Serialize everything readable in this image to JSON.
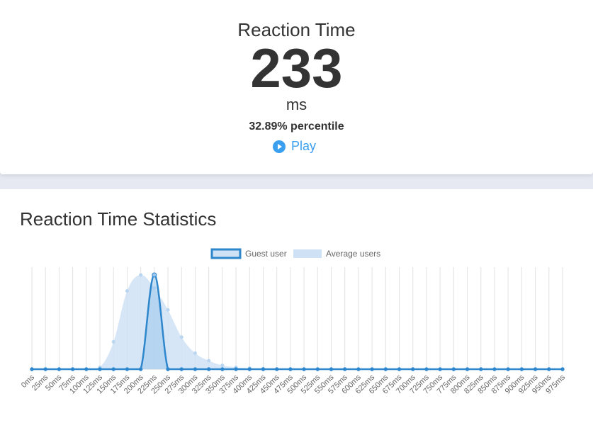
{
  "result": {
    "title": "Reaction Time",
    "value": "233",
    "unit": "ms",
    "percentile": "32.89% percentile",
    "play_label": "Play"
  },
  "stats": {
    "title": "Reaction Time Statistics"
  },
  "colors": {
    "accent": "#3b9ff0",
    "guest_line": "#2e86cc",
    "average_fill": "#cfe2f5"
  },
  "chart_data": {
    "type": "area",
    "categories": [
      "0ms",
      "25ms",
      "50ms",
      "75ms",
      "100ms",
      "125ms",
      "150ms",
      "175ms",
      "200ms",
      "225ms",
      "250ms",
      "275ms",
      "300ms",
      "325ms",
      "350ms",
      "375ms",
      "400ms",
      "425ms",
      "450ms",
      "475ms",
      "500ms",
      "525ms",
      "550ms",
      "575ms",
      "600ms",
      "625ms",
      "650ms",
      "675ms",
      "700ms",
      "725ms",
      "750ms",
      "775ms",
      "800ms",
      "825ms",
      "850ms",
      "875ms",
      "900ms",
      "925ms",
      "950ms",
      "975ms"
    ],
    "series": [
      {
        "name": "Guest user",
        "type": "line",
        "values": [
          0,
          0,
          0,
          0,
          0,
          0,
          0,
          0,
          0,
          100,
          0,
          0,
          0,
          0,
          0,
          0,
          0,
          0,
          0,
          0,
          0,
          0,
          0,
          0,
          0,
          0,
          0,
          0,
          0,
          0,
          0,
          0,
          0,
          0,
          0,
          0,
          0,
          0,
          0,
          0
        ]
      },
      {
        "name": "Average users",
        "type": "area",
        "values": [
          0,
          0,
          0,
          0,
          0,
          2,
          29,
          83,
          100,
          86,
          63,
          34,
          17,
          9,
          4,
          2,
          1,
          0.5,
          0,
          0,
          0,
          0,
          0,
          0,
          0,
          0,
          0,
          0,
          0,
          0,
          0,
          0,
          0,
          0,
          0,
          0,
          0,
          0,
          0,
          0
        ]
      }
    ],
    "xlabel": "",
    "ylabel": "",
    "ylim": [
      0,
      110
    ],
    "grid": "vertical",
    "legend": "top-center"
  }
}
